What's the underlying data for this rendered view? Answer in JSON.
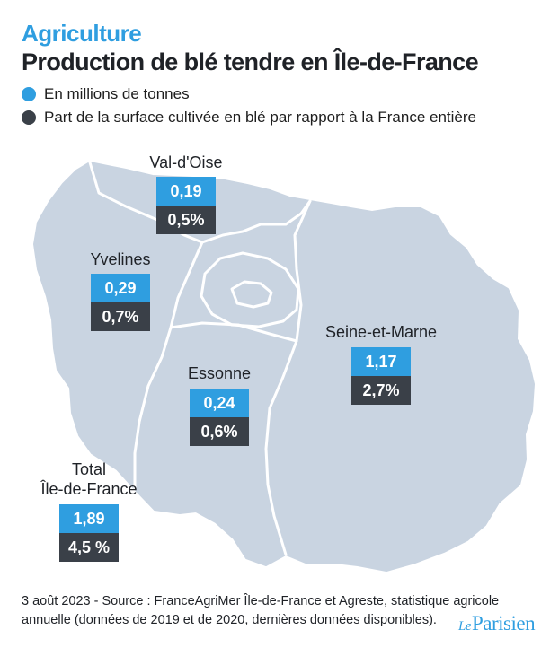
{
  "header": {
    "kicker": "Agriculture",
    "title": "Production de blé tendre en Île-de-France"
  },
  "legend": [
    {
      "label": "En millions de tonnes",
      "color": "#2f9ee0"
    },
    {
      "label": "Part de la surface cultivée en blé par rapport à la France entière",
      "color": "#3a4048"
    }
  ],
  "map_colors": {
    "region_fill": "#c9d4e1",
    "boundary": "#ffffff"
  },
  "departments": {
    "val_doise": {
      "name": "Val-d'Oise",
      "production": "0,19",
      "share": "0,5%"
    },
    "yvelines": {
      "name": "Yvelines",
      "production": "0,29",
      "share": "0,7%"
    },
    "seine_et_marne": {
      "name": "Seine-et-Marne",
      "production": "1,17",
      "share": "2,7%"
    },
    "essonne": {
      "name": "Essonne",
      "production": "0,24",
      "share": "0,6%"
    },
    "total": {
      "name_line1": "Total",
      "name_line2": "Île-de-France",
      "production": "1,89",
      "share": "4,5 %"
    }
  },
  "footer": {
    "line1": "3 août 2023 - Source : FranceAgriMer Île-de-France et Agreste, statistique agricole",
    "line2": "annuelle (données de 2019 et de 2020, dernières données disponibles)."
  },
  "logo": {
    "prefix": "Le",
    "name": "Parisien"
  }
}
